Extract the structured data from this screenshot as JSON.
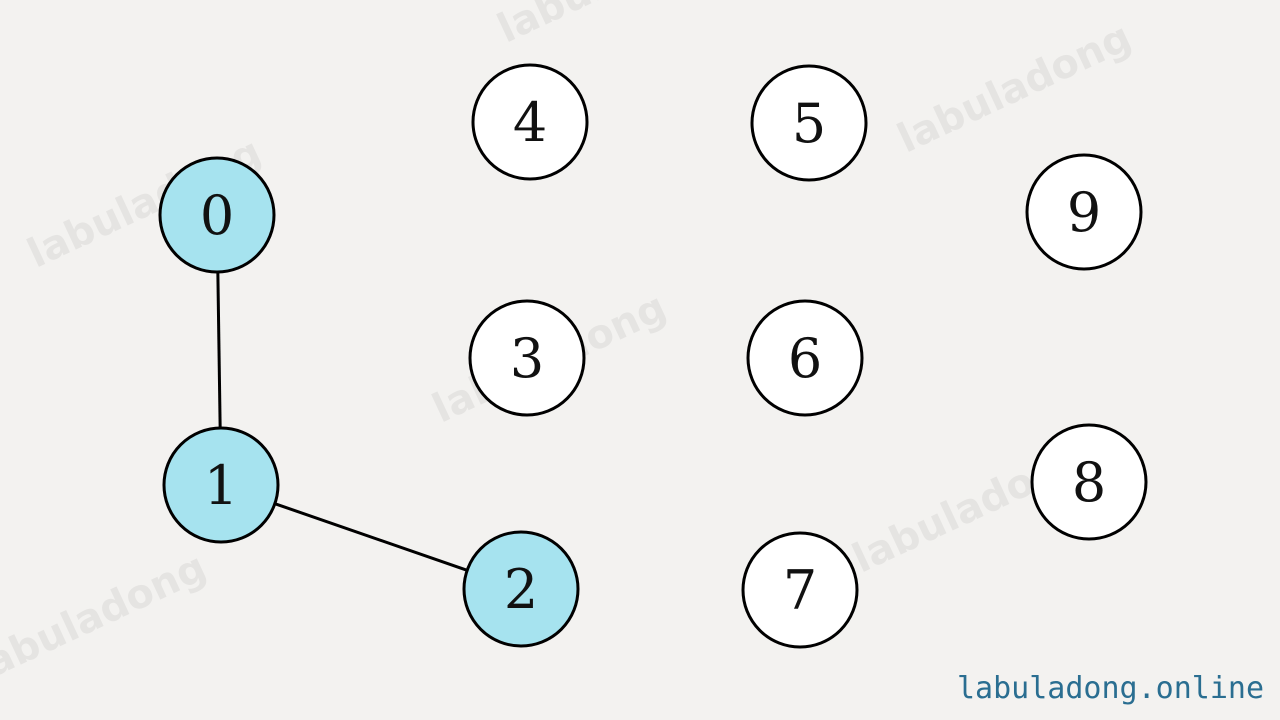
{
  "diagram": {
    "type": "graph",
    "highlight_color": "#a6e3ef",
    "default_color": "#ffffff",
    "stroke_color": "#000000",
    "nodes": [
      {
        "id": "0",
        "label": "0",
        "highlighted": true
      },
      {
        "id": "1",
        "label": "1",
        "highlighted": true
      },
      {
        "id": "2",
        "label": "2",
        "highlighted": true
      },
      {
        "id": "3",
        "label": "3",
        "highlighted": false
      },
      {
        "id": "4",
        "label": "4",
        "highlighted": false
      },
      {
        "id": "5",
        "label": "5",
        "highlighted": false
      },
      {
        "id": "6",
        "label": "6",
        "highlighted": false
      },
      {
        "id": "7",
        "label": "7",
        "highlighted": false
      },
      {
        "id": "8",
        "label": "8",
        "highlighted": false
      },
      {
        "id": "9",
        "label": "9",
        "highlighted": false
      }
    ],
    "edges": [
      {
        "from": "0",
        "to": "1"
      },
      {
        "from": "1",
        "to": "2"
      }
    ]
  },
  "watermark": {
    "text": "labuladong"
  },
  "footer": {
    "site_url": "labuladong.online"
  }
}
